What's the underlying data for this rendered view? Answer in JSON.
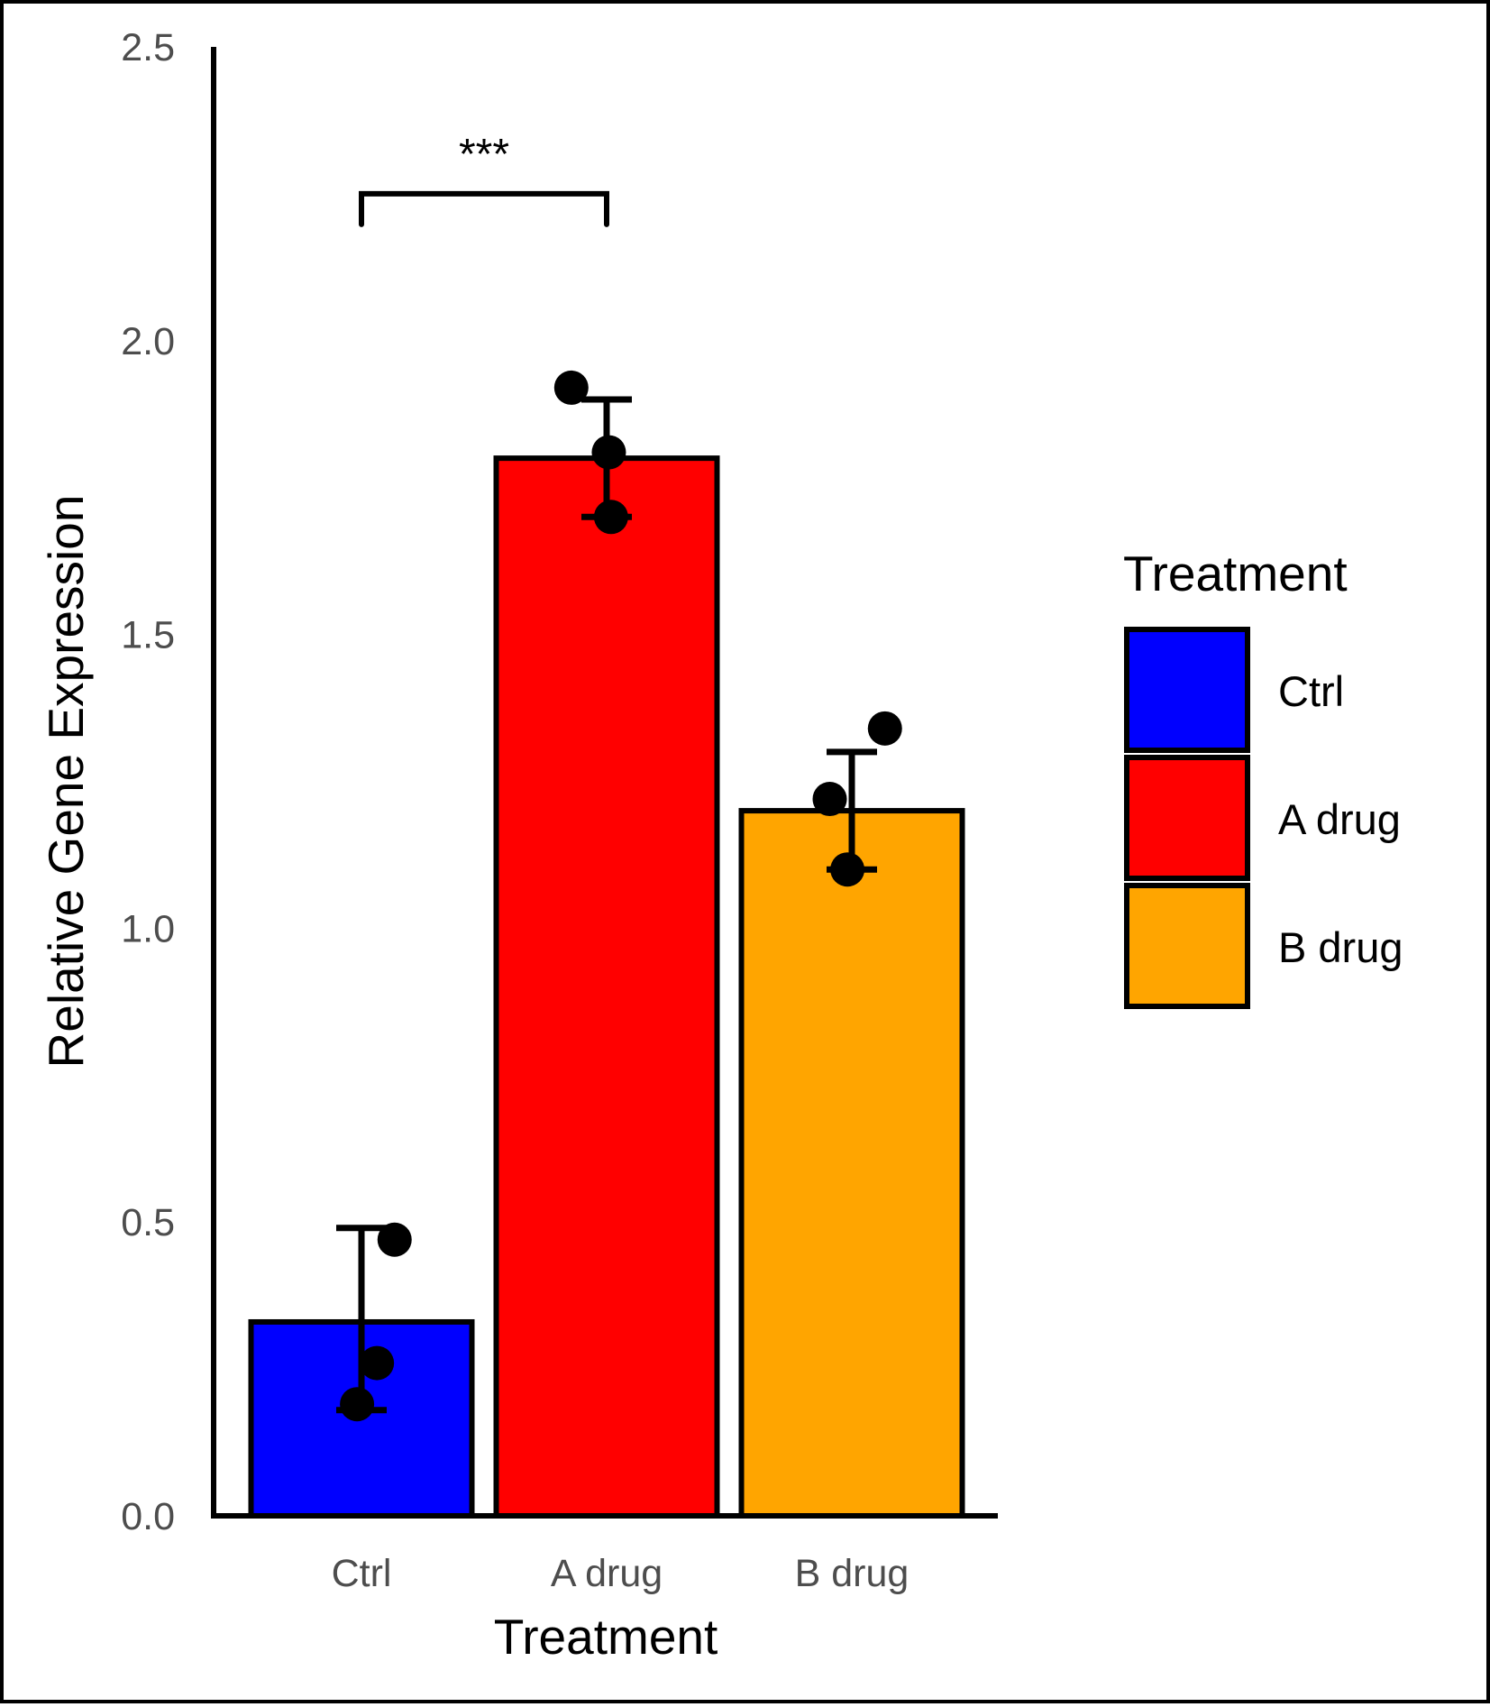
{
  "chart_data": {
    "type": "bar",
    "title": "",
    "xlabel": "Treatment",
    "ylabel": "Relative Gene Expression",
    "ylim": [
      0,
      2.5
    ],
    "yticks": [
      "0.0",
      "0.5",
      "1.0",
      "1.5",
      "2.0",
      "2.5"
    ],
    "categories": [
      "Ctrl",
      "A drug",
      "B drug"
    ],
    "values": [
      0.33,
      1.8,
      1.2
    ],
    "error_upper": [
      0.49,
      1.9,
      1.3
    ],
    "error_lower": [
      0.18,
      1.7,
      1.1
    ],
    "colors": [
      "#0000ff",
      "#ff0000",
      "#ffa500"
    ],
    "points": [
      [
        {
          "x_offset": 0.15,
          "y": 0.47
        },
        {
          "x_offset": 0.07,
          "y": 0.26
        },
        {
          "x_offset": -0.02,
          "y": 0.19
        }
      ],
      [
        {
          "x_offset": -0.16,
          "y": 1.92
        },
        {
          "x_offset": 0.01,
          "y": 1.81
        },
        {
          "x_offset": 0.02,
          "y": 1.7
        }
      ],
      [
        {
          "x_offset": 0.15,
          "y": 1.34
        },
        {
          "x_offset": -0.1,
          "y": 1.22
        },
        {
          "x_offset": -0.02,
          "y": 1.1
        }
      ]
    ],
    "significance": {
      "from": "Ctrl",
      "to": "A drug",
      "label": "***",
      "y": 2.25
    },
    "legend": {
      "title": "Treatment",
      "position": "right",
      "entries": [
        {
          "label": "Ctrl",
          "color": "#0000ff"
        },
        {
          "label": "A drug",
          "color": "#ff0000"
        },
        {
          "label": "B drug",
          "color": "#ffa500"
        }
      ]
    }
  }
}
